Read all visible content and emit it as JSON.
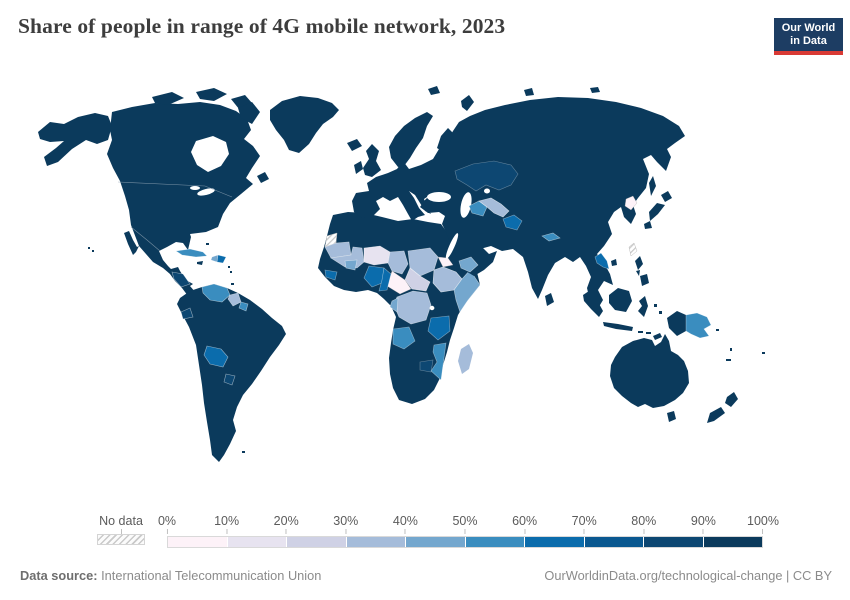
{
  "header": {
    "title": "Share of people in range of 4G mobile network, 2023"
  },
  "logo": {
    "line1": "Our World",
    "line2": "in Data",
    "bg_color": "#1d3d63",
    "accent_color": "#d93a35"
  },
  "legend": {
    "no_data_label": "No data",
    "tick_labels": [
      "0%",
      "10%",
      "20%",
      "30%",
      "40%",
      "50%",
      "60%",
      "70%",
      "80%",
      "90%",
      "100%"
    ],
    "bin_colors": [
      "#fdf2f8",
      "#e7e3f0",
      "#cfd1e5",
      "#a5bcda",
      "#74a7ce",
      "#3a8dbf",
      "#0b6cac",
      "#0a5890",
      "#0d4772",
      "#0b3a5c"
    ]
  },
  "footer": {
    "source_label": "Data source:",
    "source_value": "International Telecommunication Union",
    "attribution": "OurWorldinData.org/technological-change | CC BY"
  },
  "chart_data": {
    "type": "choropleth",
    "title": "Share of people in range of 4G mobile network, 2023",
    "unit": "% of population within range of a 4G mobile network",
    "legend_position": "bottom",
    "bin_ranges": [
      "0-10%",
      "10-20%",
      "20-30%",
      "30-40%",
      "40-50%",
      "50-60%",
      "60-70%",
      "70-80%",
      "80-90%",
      "90-100%"
    ],
    "no_data_label": "No data",
    "regions": {
      "north-america": {
        "label": "United States, Canada, Mexico & Greenland",
        "bin": 9
      },
      "cuba": {
        "label": "Cuba",
        "bin": 5
      },
      "haiti": {
        "label": "Haiti",
        "bin": 4
      },
      "dominican-republic": {
        "label": "Dominican Republic",
        "bin": 6
      },
      "jamaica": {
        "label": "Jamaica",
        "bin": 9
      },
      "caribbean-islands": {
        "label": "Lesser Antilles",
        "bin": 9
      },
      "honduras-nicaragua": {
        "label": "Honduras & Nicaragua",
        "bin": 8
      },
      "south-america": {
        "label": "Brazil, Argentina, Chile, Peru, Colombia & Uruguay",
        "bin": 9
      },
      "venezuela": {
        "label": "Venezuela",
        "bin": 5
      },
      "guyana": {
        "label": "Guyana",
        "bin": 3
      },
      "suriname": {
        "label": "Suriname",
        "bin": 5
      },
      "ecuador": {
        "label": "Ecuador",
        "bin": 8
      },
      "bolivia": {
        "label": "Bolivia",
        "bin": 6
      },
      "paraguay": {
        "label": "Paraguay",
        "bin": 8
      },
      "eurasia": {
        "label": "Europe, Russia, China, India, Middle East & mainland Asia",
        "bin": 9
      },
      "kazakhstan": {
        "label": "Kazakhstan",
        "bin": 8
      },
      "turkmenistan": {
        "label": "Turkmenistan",
        "bin": 5
      },
      "uzbekistan": {
        "label": "Uzbekistan",
        "bin": 3
      },
      "afghanistan": {
        "label": "Afghanistan",
        "bin": 6
      },
      "nepal": {
        "label": "Nepal",
        "bin": 5
      },
      "north-korea": {
        "label": "North Korea",
        "bin": 0
      },
      "laos": {
        "label": "Laos",
        "bin": 6
      },
      "yemen": {
        "label": "Yemen",
        "bin": 4
      },
      "taiwan": {
        "label": "Taiwan",
        "bin": "no-data"
      },
      "japan": {
        "label": "Japan",
        "bin": 9
      },
      "sri-lanka": {
        "label": "Sri Lanka",
        "bin": 9
      },
      "philippines": {
        "label": "Philippines",
        "bin": 9
      },
      "indonesia": {
        "label": "Indonesia & Malaysia",
        "bin": 9
      },
      "papua-new-guinea": {
        "label": "Papua New Guinea",
        "bin": 5
      },
      "pacific-islands": {
        "label": "Pacific islands",
        "bin": 9
      },
      "australia": {
        "label": "Australia",
        "bin": 9
      },
      "new-zealand": {
        "label": "New Zealand",
        "bin": 9
      },
      "africa": {
        "label": "Morocco, Algeria, Libya, Egypt, Kenya, South Africa & other dark-shaded Africa",
        "bin": 9
      },
      "western-sahara": {
        "label": "Western Sahara",
        "bin": "no-data"
      },
      "mauritania": {
        "label": "Mauritania",
        "bin": 3
      },
      "mali": {
        "label": "Mali",
        "bin": 3
      },
      "niger": {
        "label": "Niger",
        "bin": 1
      },
      "chad": {
        "label": "Chad",
        "bin": 3
      },
      "sudan": {
        "label": "Sudan",
        "bin": 3
      },
      "eritrea": {
        "label": "Eritrea",
        "bin": 0
      },
      "ethiopia": {
        "label": "Ethiopia",
        "bin": 3
      },
      "somalia": {
        "label": "Somalia",
        "bin": 4
      },
      "south-sudan": {
        "label": "South Sudan",
        "bin": 2
      },
      "central-african-republic": {
        "label": "Central African Republic",
        "bin": 0
      },
      "nigeria": {
        "label": "Nigeria",
        "bin": 6
      },
      "cameroon": {
        "label": "Cameroon",
        "bin": 6
      },
      "dr-congo": {
        "label": "Democratic Republic of Congo",
        "bin": 3
      },
      "congo": {
        "label": "Congo",
        "bin": 4
      },
      "tanzania": {
        "label": "Tanzania",
        "bin": 6
      },
      "angola": {
        "label": "Angola",
        "bin": 5
      },
      "mozambique": {
        "label": "Mozambique",
        "bin": 5
      },
      "zimbabwe": {
        "label": "Zimbabwe",
        "bin": 8
      },
      "madagascar": {
        "label": "Madagascar",
        "bin": 3
      },
      "burkina-faso": {
        "label": "Burkina Faso",
        "bin": 4
      },
      "guinea": {
        "label": "Guinea",
        "bin": 6
      }
    }
  }
}
